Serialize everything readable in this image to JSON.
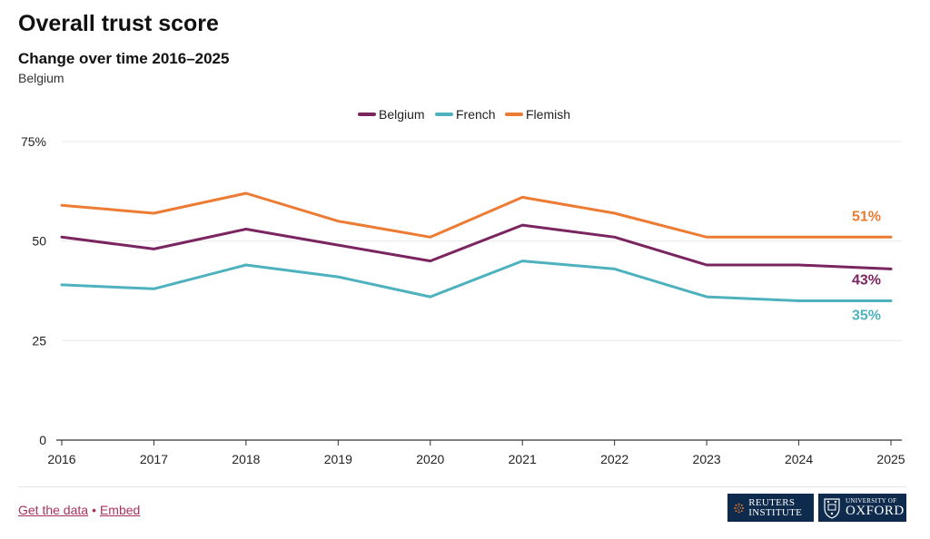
{
  "header": {
    "title": "Overall trust score",
    "subtitle": "Change over time 2016–2025",
    "caption": "Belgium"
  },
  "footer": {
    "get_data": "Get the data",
    "separator": "•",
    "embed": "Embed",
    "reuters_logo": "REUTERS INSTITUTE",
    "oxford_logo_small": "UNIVERSITY OF",
    "oxford_logo_big": "OXFORD"
  },
  "chart_data": {
    "type": "line",
    "x": [
      "2016",
      "2017",
      "2018",
      "2019",
      "2020",
      "2021",
      "2022",
      "2023",
      "2024",
      "2025"
    ],
    "ylim": [
      0,
      75
    ],
    "yticks": [
      "0",
      "25",
      "50",
      "75%"
    ],
    "ytick_values": [
      0,
      25,
      50,
      75
    ],
    "grid": true,
    "legend_position": "top-center",
    "series": [
      {
        "name": "Belgium",
        "color": "#7b2560",
        "values": [
          51,
          48,
          53,
          49,
          45,
          54,
          51,
          44,
          44,
          43
        ],
        "end_label": "43%"
      },
      {
        "name": "French",
        "color": "#4eb1be",
        "values": [
          39,
          38,
          44,
          41,
          36,
          45,
          43,
          36,
          35,
          35
        ],
        "end_label": "35%"
      },
      {
        "name": "Flemish",
        "color": "#ec7b33",
        "values": [
          59,
          57,
          62,
          55,
          51,
          61,
          57,
          51,
          51,
          51
        ],
        "end_label": "51%"
      }
    ]
  }
}
